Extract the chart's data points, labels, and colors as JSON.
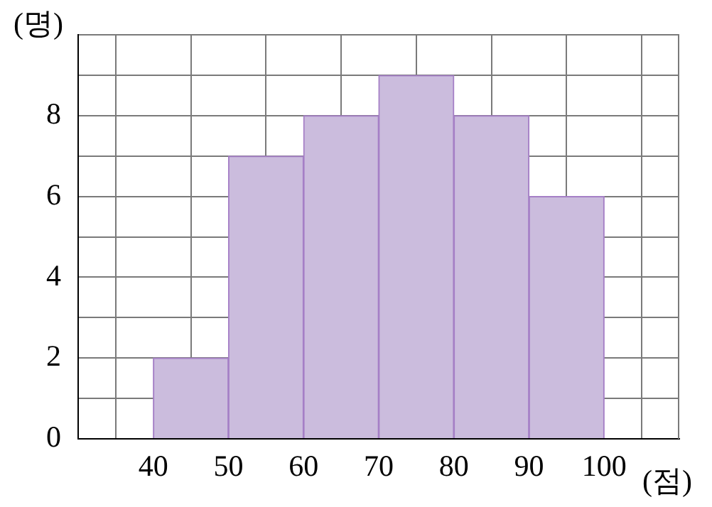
{
  "chart_data": {
    "type": "histogram",
    "xlabel": "(점)",
    "ylabel": "(명)",
    "bins": [
      40,
      50,
      60,
      70,
      80,
      90,
      100
    ],
    "values": [
      2,
      7,
      8,
      9,
      8,
      6
    ],
    "color": "#cbbcdd",
    "xlim": [
      30,
      110
    ],
    "xticks": [
      {
        "value": 30,
        "label": null
      },
      40,
      50,
      60,
      70,
      80,
      90,
      100,
      {
        "value": 110,
        "label": null
      }
    ],
    "ylim": [
      0,
      10
    ],
    "yticks": [
      0,
      {
        "value": 1,
        "label": null
      },
      2,
      {
        "value": 3,
        "label": null
      },
      4,
      {
        "value": 5,
        "label": null
      },
      6,
      {
        "value": 7,
        "label": null
      },
      8,
      {
        "value": 9,
        "label": null
      },
      {
        "value": 10,
        "label": null
      }
    ],
    "grid": true
  }
}
